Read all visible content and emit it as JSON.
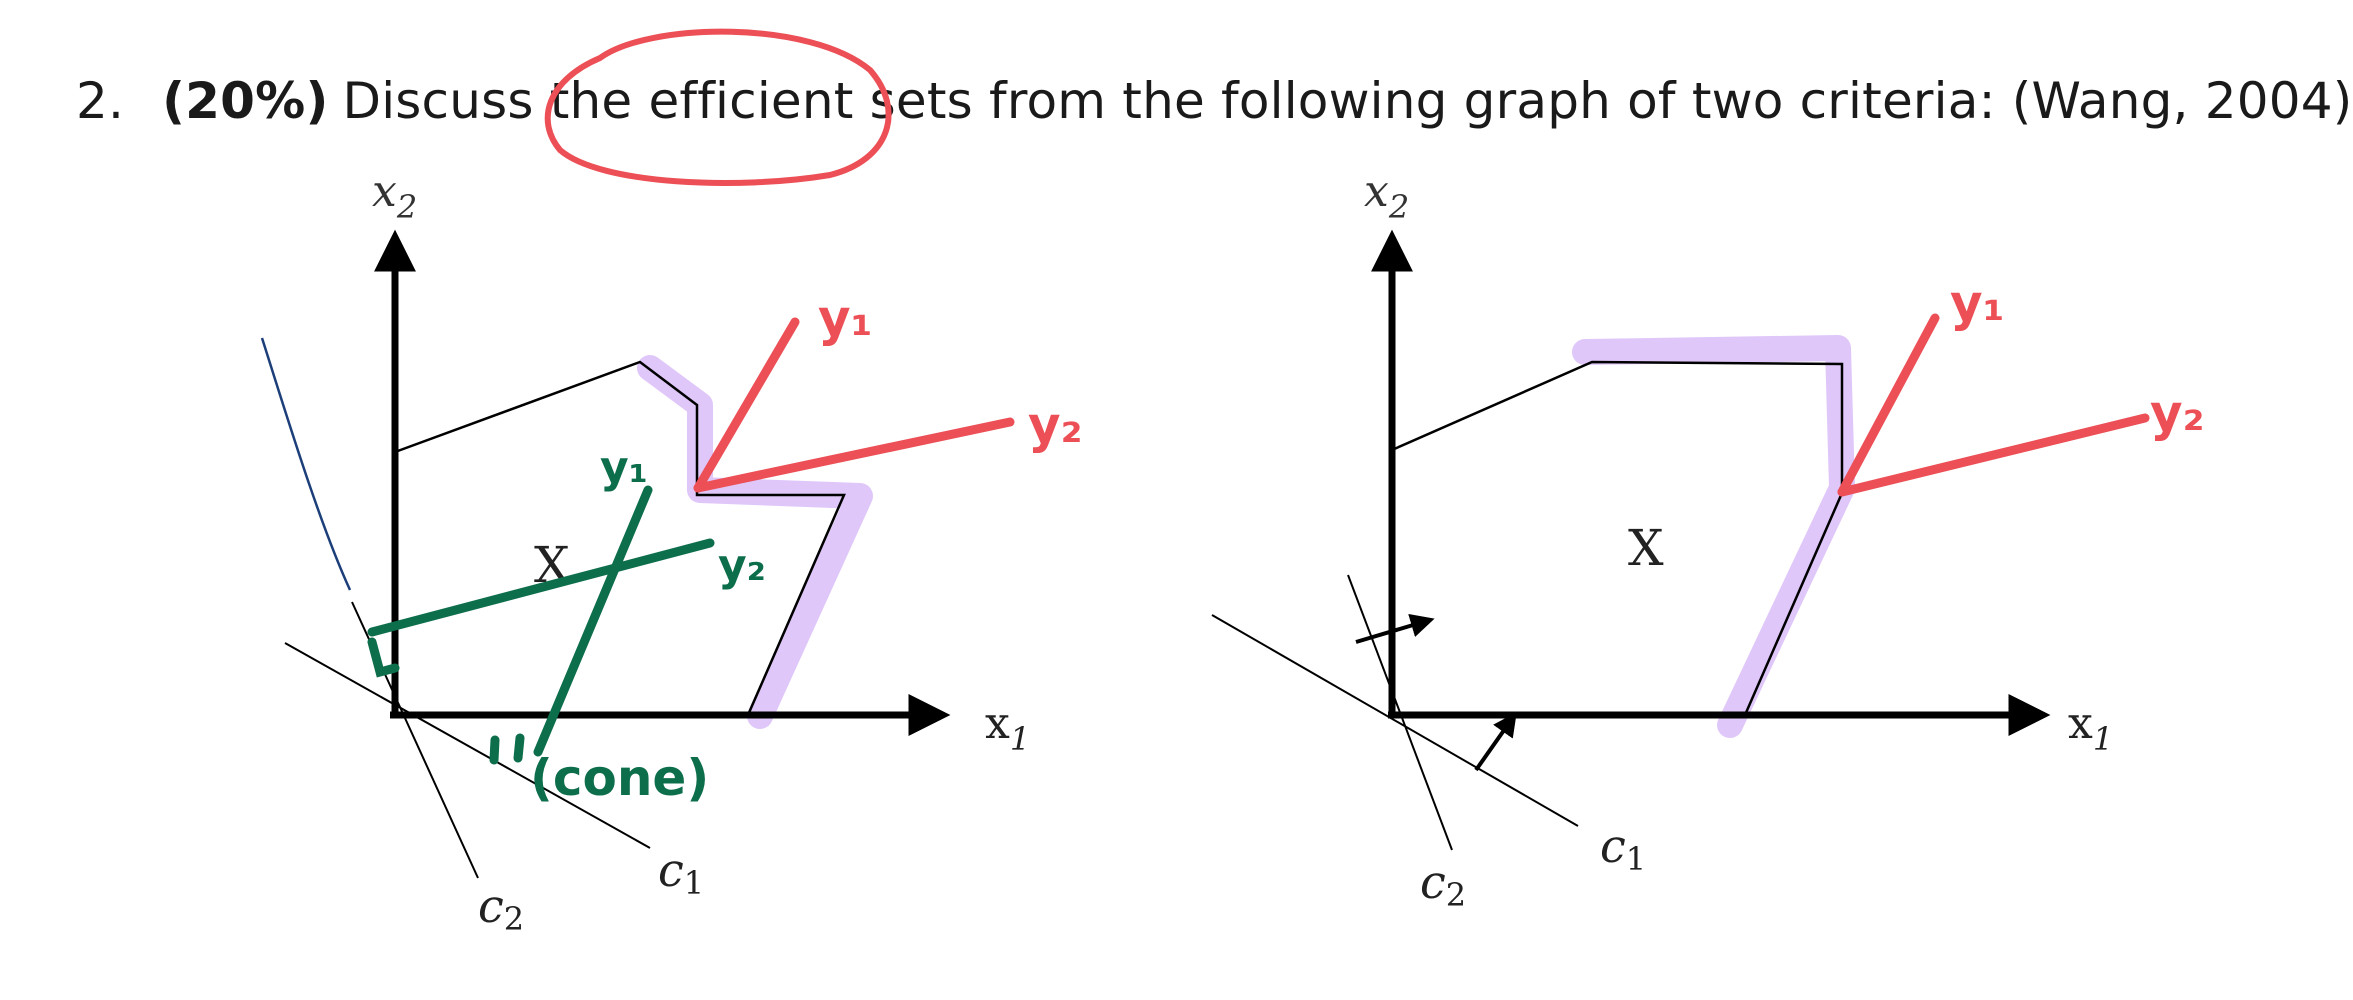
{
  "question": {
    "number": "2.",
    "weight": "(20%)",
    "text": "Discuss the efficient sets from the following graph of two criteria: (Wang, 2004)"
  },
  "figures": [
    {
      "axis_x_label": "x",
      "axis_x_sub": "1",
      "axis_y_label": "x",
      "axis_y_sub": "2",
      "region_label": "X",
      "criterion_1": "c",
      "criterion_1_sub": "1",
      "criterion_2": "c",
      "criterion_2_sub": "2"
    },
    {
      "axis_x_label": "x",
      "axis_x_sub": "1",
      "axis_y_label": "x",
      "axis_y_sub": "2",
      "region_label": "X",
      "criterion_1": "c",
      "criterion_1_sub": "1",
      "criterion_2": "c",
      "criterion_2_sub": "2"
    }
  ],
  "annotations": {
    "red_y1": "y₁",
    "red_y2": "y₂",
    "green_y1": "y₁",
    "green_y2": "y₂",
    "green_cone": "(cone)"
  },
  "colors": {
    "text": "#1a1a1a",
    "red_ink": "#ec4f55",
    "green_ink": "#0d6e4c",
    "highlight": "#d6b4f7",
    "blue_ink": "#1c3f7a"
  }
}
